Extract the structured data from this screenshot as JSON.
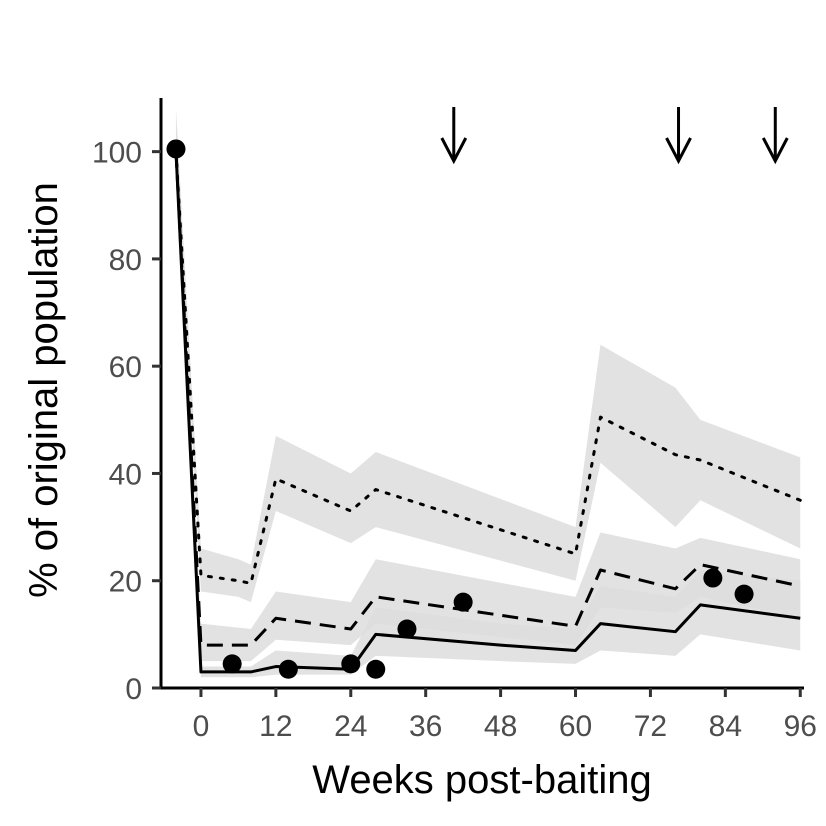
{
  "chart_data": {
    "type": "line",
    "title": "",
    "xlabel": "Weeks post-baiting",
    "ylabel": "% of original population",
    "xlim": [
      -6.4,
      96.6
    ],
    "ylim": [
      0,
      110
    ],
    "x_ticks": [
      0,
      12,
      24,
      36,
      48,
      60,
      72,
      84,
      96
    ],
    "x_tick_labels": [
      "0",
      "12",
      "24",
      "36",
      "48",
      "60",
      "72",
      "84",
      "96"
    ],
    "y_ticks": [
      0,
      20,
      40,
      60,
      80,
      100
    ],
    "y_tick_labels": [
      "0",
      "20",
      "40",
      "60",
      "80",
      "100"
    ],
    "grid": false,
    "legend": "none",
    "band_color": "#dddddd",
    "line_color": "#000000",
    "series": [
      {
        "style": "dotted",
        "x": [
          -4,
          0,
          6,
          8,
          12,
          24,
          28,
          60,
          64,
          76,
          80,
          96
        ],
        "y": [
          100,
          21,
          20,
          19.5,
          39,
          33,
          37,
          25,
          50.5,
          43.5,
          42.5,
          35
        ],
        "lower": [
          100,
          18,
          17,
          16,
          33,
          27,
          30,
          20,
          42,
          30,
          35,
          26
        ],
        "upper": [
          108,
          26,
          24,
          23,
          47,
          40,
          44,
          30,
          64,
          56,
          50,
          43
        ]
      },
      {
        "style": "dashed",
        "x": [
          -4,
          0,
          8,
          12,
          24,
          28,
          60,
          64,
          76,
          80,
          96
        ],
        "y": [
          100,
          8,
          8,
          13,
          11,
          17,
          11.5,
          22,
          18.5,
          23,
          19
        ],
        "lower": [
          100,
          5,
          5,
          9,
          8,
          12,
          8,
          15,
          14,
          17,
          13
        ],
        "upper": [
          105,
          12,
          11,
          18,
          16,
          24,
          17,
          29,
          26,
          28,
          24
        ]
      },
      {
        "style": "solid",
        "x": [
          -4,
          0,
          8,
          12,
          24,
          28,
          48,
          60,
          64,
          76,
          80,
          96
        ],
        "y": [
          100,
          3,
          3,
          4,
          3.5,
          10,
          8,
          7,
          12,
          10.5,
          15.5,
          13
        ],
        "lower": [
          100,
          2,
          2,
          2.5,
          2.5,
          6,
          5,
          4.5,
          7,
          6,
          10,
          7
        ],
        "upper": [
          103,
          4,
          4,
          7,
          6,
          15,
          12,
          11,
          19,
          17,
          22,
          20
        ]
      }
    ],
    "observed_points": {
      "x": [
        -4,
        5,
        14,
        24,
        28,
        33,
        42,
        82,
        87
      ],
      "y": [
        100.5,
        4.5,
        3.5,
        4.5,
        3.5,
        11,
        16,
        20.5,
        17.5
      ]
    },
    "arrows_x": [
      40.5,
      76.5,
      92
    ]
  }
}
